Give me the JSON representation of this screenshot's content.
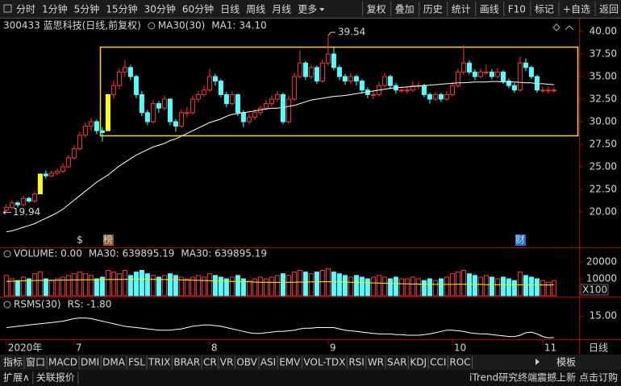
{
  "toolbar": {
    "periods": [
      "分时",
      "1分钟",
      "5分钟",
      "15分钟",
      "30分钟",
      "60分钟",
      "日线",
      "周线",
      "月线",
      "更多"
    ],
    "tools": [
      "复权",
      "叠加",
      "历史",
      "统计",
      "画线",
      "F10",
      "标记",
      "+自选",
      "返回"
    ]
  },
  "axis_period": "日线",
  "chart_data": [
    {
      "type": "candlestick",
      "title": "300433 蓝思科技(日线,前复权)",
      "up_color": "#ff3232",
      "down_color": "#54ffff",
      "limit_color": "#ffff00",
      "limit_up": [
        6,
        18
      ],
      "candles": [
        [
          20.2,
          20.9,
          19.94,
          20.5
        ],
        [
          20.5,
          21.3,
          20.3,
          21.0
        ],
        [
          21.0,
          21.2,
          20.5,
          20.8
        ],
        [
          20.8,
          21.8,
          20.6,
          21.5
        ],
        [
          21.5,
          21.7,
          21.0,
          21.2
        ],
        [
          21.2,
          22.3,
          21.0,
          22.0
        ],
        [
          22.0,
          24.2,
          22.0,
          24.2
        ],
        [
          24.2,
          24.6,
          23.7,
          24.0
        ],
        [
          24.0,
          24.6,
          23.8,
          24.3
        ],
        [
          24.3,
          24.8,
          24.1,
          24.5
        ],
        [
          24.5,
          25.4,
          24.3,
          25.0
        ],
        [
          25.0,
          26.3,
          24.9,
          26.0
        ],
        [
          26.0,
          27.4,
          25.8,
          27.0
        ],
        [
          27.0,
          28.9,
          26.8,
          28.5
        ],
        [
          28.5,
          29.9,
          28.2,
          29.5
        ],
        [
          29.5,
          30.4,
          29.0,
          30.0
        ],
        [
          30.0,
          30.2,
          28.6,
          29.0
        ],
        [
          29.0,
          29.4,
          27.8,
          28.8
        ],
        [
          29.0,
          33.0,
          29.0,
          33.0
        ],
        [
          33.0,
          34.6,
          32.5,
          34.0
        ],
        [
          34.0,
          35.9,
          33.6,
          35.5
        ],
        [
          35.5,
          36.8,
          35.0,
          36.0
        ],
        [
          36.0,
          36.3,
          34.6,
          35.0
        ],
        [
          35.0,
          35.2,
          32.6,
          33.0
        ],
        [
          33.0,
          33.4,
          30.6,
          31.0
        ],
        [
          31.0,
          31.3,
          29.6,
          30.0
        ],
        [
          30.0,
          32.4,
          29.8,
          32.0
        ],
        [
          32.0,
          32.3,
          31.0,
          31.5
        ],
        [
          31.5,
          32.9,
          31.2,
          32.5
        ],
        [
          32.5,
          32.6,
          29.6,
          30.0
        ],
        [
          30.0,
          30.3,
          28.9,
          29.5
        ],
        [
          29.5,
          31.4,
          29.3,
          31.0
        ],
        [
          31.0,
          31.6,
          30.5,
          31.0
        ],
        [
          31.0,
          32.9,
          30.8,
          32.5
        ],
        [
          32.5,
          33.4,
          32.2,
          33.0
        ],
        [
          33.0,
          34.0,
          32.8,
          33.5
        ],
        [
          33.5,
          35.9,
          33.3,
          35.0
        ],
        [
          35.0,
          35.3,
          34.0,
          34.5
        ],
        [
          34.5,
          34.7,
          32.7,
          33.0
        ],
        [
          33.0,
          33.3,
          31.6,
          32.0
        ],
        [
          32.0,
          33.4,
          31.8,
          33.0
        ],
        [
          33.0,
          33.1,
          30.6,
          31.0
        ],
        [
          31.0,
          31.3,
          29.4,
          30.0
        ],
        [
          30.0,
          30.9,
          29.7,
          30.5
        ],
        [
          30.5,
          31.4,
          30.2,
          31.0
        ],
        [
          31.0,
          31.8,
          30.7,
          31.5
        ],
        [
          31.5,
          32.4,
          31.3,
          32.0
        ],
        [
          32.0,
          32.9,
          31.7,
          32.5
        ],
        [
          32.5,
          33.4,
          32.2,
          33.0
        ],
        [
          33.0,
          33.2,
          29.7,
          30.0
        ],
        [
          30.0,
          32.9,
          29.8,
          32.5
        ],
        [
          32.5,
          35.4,
          32.3,
          35.0
        ],
        [
          35.0,
          37.9,
          34.8,
          36.5
        ],
        [
          36.5,
          36.7,
          34.6,
          35.0
        ],
        [
          35.0,
          36.4,
          34.7,
          36.0
        ],
        [
          36.0,
          36.2,
          34.2,
          34.5
        ],
        [
          34.5,
          36.9,
          34.3,
          36.5
        ],
        [
          36.5,
          39.54,
          36.2,
          37.5
        ],
        [
          37.5,
          38.2,
          35.7,
          36.0
        ],
        [
          36.0,
          36.3,
          34.6,
          35.0
        ],
        [
          35.0,
          35.3,
          34.1,
          34.5
        ],
        [
          34.5,
          35.4,
          34.2,
          35.0
        ],
        [
          35.0,
          35.2,
          34.0,
          34.5
        ],
        [
          34.5,
          34.7,
          33.1,
          33.5
        ],
        [
          33.5,
          33.8,
          32.6,
          33.0
        ],
        [
          33.0,
          33.4,
          32.5,
          33.0
        ],
        [
          33.0,
          34.4,
          32.8,
          34.0
        ],
        [
          34.0,
          35.4,
          33.8,
          35.0
        ],
        [
          35.0,
          35.2,
          33.6,
          34.0
        ],
        [
          34.0,
          34.3,
          33.1,
          33.5
        ],
        [
          33.5,
          33.9,
          33.2,
          33.5
        ],
        [
          33.5,
          33.9,
          33.1,
          33.5
        ],
        [
          33.5,
          34.5,
          33.3,
          34.0
        ],
        [
          34.0,
          34.4,
          33.6,
          34.0
        ],
        [
          34.0,
          34.2,
          32.7,
          33.0
        ],
        [
          33.0,
          33.2,
          32.0,
          32.5
        ],
        [
          32.5,
          33.3,
          32.3,
          33.0
        ],
        [
          33.0,
          33.2,
          32.2,
          32.5
        ],
        [
          32.5,
          33.4,
          32.3,
          33.0
        ],
        [
          33.0,
          34.4,
          32.8,
          34.0
        ],
        [
          34.0,
          35.9,
          33.8,
          35.5
        ],
        [
          35.5,
          38.5,
          35.2,
          36.5
        ],
        [
          36.5,
          36.8,
          35.2,
          35.5
        ],
        [
          35.5,
          35.8,
          34.6,
          35.0
        ],
        [
          35.0,
          35.9,
          34.8,
          35.5
        ],
        [
          35.5,
          36.3,
          35.2,
          35.5
        ],
        [
          35.5,
          35.8,
          34.7,
          35.0
        ],
        [
          35.0,
          35.9,
          34.8,
          35.5
        ],
        [
          35.5,
          35.7,
          34.2,
          34.5
        ],
        [
          34.5,
          34.8,
          33.7,
          34.0
        ],
        [
          34.0,
          34.3,
          33.2,
          33.5
        ],
        [
          33.5,
          37.2,
          33.3,
          36.5
        ],
        [
          36.5,
          37.0,
          35.6,
          36.0
        ],
        [
          36.0,
          36.2,
          34.7,
          35.0
        ],
        [
          35.0,
          35.2,
          33.2,
          33.5
        ],
        [
          33.5,
          33.9,
          33.2,
          33.5
        ],
        [
          33.5,
          33.9,
          33.1,
          33.5
        ],
        [
          33.5,
          33.8,
          33.2,
          33.5
        ]
      ],
      "ma": {
        "name": "MA30(30)",
        "label": "MA1: 34.10",
        "color": "#ffffff",
        "values": [
          17.8,
          17.9,
          18.1,
          18.3,
          18.5,
          18.7,
          19.0,
          19.3,
          19.6,
          19.9,
          20.3,
          20.8,
          21.3,
          21.8,
          22.3,
          22.8,
          23.3,
          23.7,
          24.1,
          24.6,
          25.1,
          25.5,
          25.9,
          26.3,
          26.6,
          26.9,
          27.2,
          27.4,
          27.6,
          27.9,
          28.1,
          28.4,
          28.7,
          29.0,
          29.3,
          29.6,
          29.9,
          30.1,
          30.3,
          30.6,
          30.8,
          30.9,
          31.0,
          31.1,
          31.2,
          31.3,
          31.4,
          31.5,
          31.5,
          31.6,
          31.7,
          31.8,
          32.0,
          32.2,
          32.4,
          32.5,
          32.6,
          32.7,
          32.8,
          32.85,
          32.9,
          33.0,
          33.1,
          33.2,
          33.3,
          33.4,
          33.5,
          33.6,
          33.7,
          33.75,
          33.8,
          33.85,
          33.9,
          33.95,
          34.0,
          34.05,
          34.1,
          34.15,
          34.2,
          34.25,
          34.3,
          34.3,
          34.35,
          34.4,
          34.4,
          34.4,
          34.45,
          34.45,
          34.4,
          34.4,
          34.4,
          34.35,
          34.3,
          34.3,
          34.2,
          34.2,
          34.15,
          34.1
        ]
      },
      "xlim": [
        -0.7,
        101.3
      ],
      "ylim": [
        16.25,
        41.07
      ],
      "yticks": [
        {
          "value": 20,
          "label": "20.00"
        },
        {
          "value": 22.5,
          "label": "22.50"
        },
        {
          "value": 25,
          "label": "25.00"
        },
        {
          "value": 27.5,
          "label": "27.50"
        },
        {
          "value": 30,
          "label": "30.00"
        },
        {
          "value": 32.5,
          "label": "32.50"
        },
        {
          "value": 35,
          "label": "35.00"
        },
        {
          "value": 37.5,
          "label": "37.50"
        },
        {
          "value": 40,
          "label": "40.00"
        }
      ],
      "xticks": [
        {
          "value": 0,
          "label": "2020年"
        },
        {
          "value": 12,
          "label": "7"
        },
        {
          "value": 36,
          "label": "8"
        },
        {
          "value": 57,
          "label": "9"
        },
        {
          "value": 79,
          "label": "10"
        },
        {
          "value": 95,
          "label": "11"
        }
      ],
      "events": [
        {
          "index": 13,
          "label": "$",
          "color": "#ff3232"
        },
        {
          "index": 18,
          "label": "榜",
          "color": "#ffffff",
          "background": "#8b5a2b"
        },
        {
          "index": 91,
          "label": "财",
          "color": "#ffffff",
          "background": "#1e6fd9"
        }
      ]
    },
    {
      "type": "bar",
      "title": "VOLUME: 0.00",
      "values": [
        12000,
        10000,
        9000,
        11000,
        10000,
        13000,
        14000,
        10000,
        9000,
        10000,
        11000,
        12000,
        13000,
        14000,
        13000,
        12000,
        10000,
        11000,
        15000,
        14000,
        13000,
        15000,
        12000,
        14000,
        15000,
        13000,
        12000,
        11000,
        12000,
        13000,
        12000,
        11000,
        10000,
        11000,
        12000,
        11000,
        13000,
        12000,
        11000,
        10000,
        11000,
        12000,
        10000,
        9000,
        10000,
        11000,
        10000,
        11000,
        12000,
        13000,
        12000,
        14000,
        15000,
        14000,
        13000,
        14000,
        15000,
        16000,
        14000,
        13000,
        12000,
        11000,
        12000,
        11000,
        10000,
        11000,
        12000,
        11000,
        10000,
        11000,
        10000,
        10000,
        11000,
        10000,
        9000,
        10000,
        9000,
        10000,
        11000,
        13000,
        14000,
        15000,
        13000,
        12000,
        11000,
        12000,
        11000,
        10000,
        11000,
        10000,
        9000,
        14000,
        12000,
        11000,
        10000,
        9000,
        8000,
        9000
      ],
      "lines": [
        {
          "name": "MA30: 639895.19",
          "color": "#ffffff"
        },
        {
          "name": "MA30: 639895.19",
          "color": "#ffff00",
          "values": [
            8500,
            8600,
            8700,
            8800,
            8900,
            9000,
            9100,
            9100,
            9200,
            9200,
            9300,
            9300,
            9400,
            9400,
            9500,
            9500,
            9500,
            9600,
            9600,
            9700,
            9700,
            9700,
            9800,
            9800,
            9800,
            9800,
            9700,
            9700,
            9600,
            9600,
            9500,
            9400,
            9300,
            9200,
            9100,
            9000,
            8900,
            8800,
            8700,
            8600,
            8500,
            8400,
            8300,
            8200,
            8100,
            8000,
            8000,
            7900,
            7900,
            7900,
            8000,
            8000,
            8100,
            8100,
            8200,
            8200,
            8300,
            8300,
            8200,
            8200,
            8100,
            8000,
            7900,
            7800,
            7700,
            7600,
            7500,
            7400,
            7300,
            7200,
            7100,
            7000,
            6900,
            6900,
            6800,
            6800,
            6700,
            6700,
            6700,
            6700,
            6800,
            6800,
            6800,
            6700,
            6700,
            6600,
            6600,
            6500,
            6500,
            6500,
            6500,
            6500,
            6500,
            6450,
            6450,
            6400,
            6400,
            6398.95
          ]
        }
      ],
      "ylim": [
        0,
        28600
      ],
      "yticks": [
        10000,
        20000
      ],
      "unit": "X100"
    },
    {
      "type": "line",
      "title": "RSMS(30)",
      "series": [
        {
          "name": "RS: -1.80",
          "color": "#ffffff",
          "values": [
            6,
            6.5,
            7,
            7.5,
            8,
            8.5,
            9,
            9.5,
            10,
            10.5,
            11,
            12,
            13,
            13.5,
            13.5,
            13,
            12,
            11,
            10,
            9,
            8,
            7,
            6.5,
            6,
            5.5,
            5,
            4.5,
            4,
            4,
            4,
            4.5,
            5,
            6,
            7,
            7.5,
            8,
            8,
            7.5,
            7,
            6,
            5,
            4,
            3,
            2,
            1.5,
            1.5,
            2,
            2.5,
            3,
            3,
            3.5,
            4,
            5,
            5.5,
            5.5,
            6,
            6,
            6,
            6,
            5,
            4,
            3.5,
            3,
            2.5,
            2,
            1.5,
            1,
            1,
            1,
            0.5,
            0.5,
            0,
            0,
            0,
            0.5,
            1,
            2,
            3,
            4,
            4,
            3.5,
            3,
            2,
            1.5,
            1,
            1,
            0.5,
            0,
            -0.5,
            -1,
            -1,
            0,
            2,
            2.5,
            1,
            -1,
            -2,
            -1.8
          ]
        }
      ],
      "ylim": [
        -2.5,
        29
      ],
      "yticks": [
        {
          "value": 15,
          "label": "15.00"
        }
      ]
    }
  ],
  "indicator_tabs": [
    "指标",
    "窗口",
    "MACD",
    "DMI",
    "DMA",
    "FSL",
    "TRIX",
    "BRAR",
    "CR",
    "VR",
    "OBV",
    "ASI",
    "EMV",
    "VOL-TDX",
    "RSI",
    "WR",
    "SAR",
    "KDJ",
    "CCI",
    "ROC"
  ],
  "template": "模板",
  "status": [
    "扩展∧",
    "关联报价"
  ],
  "promo": "iTrend研究终端震撼上新 点击订购"
}
